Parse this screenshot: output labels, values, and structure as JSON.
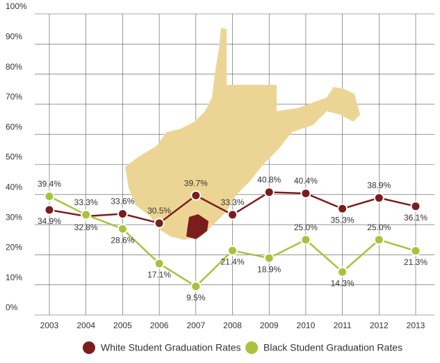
{
  "chart_data": {
    "type": "line",
    "categories": [
      "2003",
      "2004",
      "2005",
      "2006",
      "2007",
      "2008",
      "2009",
      "2010",
      "2011",
      "2012",
      "2013"
    ],
    "ylim": [
      0,
      100
    ],
    "yticks": [
      {
        "value": 0,
        "label": "0%"
      },
      {
        "value": 10,
        "label": "10%"
      },
      {
        "value": 20,
        "label": "20%"
      },
      {
        "value": 30,
        "label": "30%"
      },
      {
        "value": 40,
        "label": "40%"
      },
      {
        "value": 50,
        "label": "50%"
      },
      {
        "value": 60,
        "label": "60%"
      },
      {
        "value": 70,
        "label": "70%"
      },
      {
        "value": 80,
        "label": "80%"
      },
      {
        "value": 90,
        "label": "90%"
      },
      {
        "value": 100,
        "label": "100%"
      }
    ],
    "grid": true,
    "legend": "bottom",
    "series": [
      {
        "name": "White Student Graduation Rates",
        "color": "#7b1d1d",
        "values": [
          34.9,
          32.8,
          33.6,
          30.5,
          39.7,
          33.3,
          40.8,
          40.4,
          35.3,
          38.9,
          36.1
        ],
        "value_labels": [
          "34.9%",
          "32.8%",
          "33.6%",
          "30.5%",
          "39.7%",
          "33.3%",
          "40.8%",
          "40.4%",
          "35.3%",
          "38.9%",
          "36.1%"
        ]
      },
      {
        "name": "Black Student Graduation Rates",
        "color": "#a9c23b",
        "values": [
          39.4,
          33.3,
          28.6,
          17.1,
          9.5,
          21.4,
          18.9,
          25.0,
          14.3,
          25.0,
          21.3
        ],
        "value_labels": [
          "39.4%",
          "33.3%",
          "28.6%",
          "17.1%",
          "9.5%",
          "21.4%",
          "18.9%",
          "25.0%",
          "14.3%",
          "25.0%",
          "21.3%"
        ]
      }
    ]
  }
}
